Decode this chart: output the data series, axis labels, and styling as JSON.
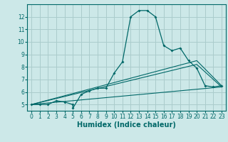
{
  "xlabel": "Humidex (Indice chaleur)",
  "bg_color": "#cce8e8",
  "grid_color": "#aacccc",
  "line_color": "#006868",
  "xlim": [
    -0.5,
    23.5
  ],
  "ylim": [
    4.5,
    13.0
  ],
  "yticks": [
    5,
    6,
    7,
    8,
    9,
    10,
    11,
    12
  ],
  "xticks": [
    0,
    1,
    2,
    3,
    4,
    5,
    6,
    7,
    8,
    9,
    10,
    11,
    12,
    13,
    14,
    15,
    16,
    17,
    18,
    19,
    20,
    21,
    22,
    23
  ],
  "line1_x": [
    0,
    1,
    2,
    3,
    4,
    5,
    5,
    6,
    7,
    8,
    9,
    10,
    11,
    12,
    13,
    14,
    15,
    16,
    17,
    18,
    19,
    20,
    21,
    22,
    23
  ],
  "line1_y": [
    5.0,
    5.0,
    5.0,
    5.3,
    5.2,
    5.0,
    4.7,
    5.8,
    6.1,
    6.3,
    6.3,
    7.5,
    8.4,
    12.0,
    12.5,
    12.5,
    12.0,
    9.7,
    9.3,
    9.5,
    8.5,
    7.9,
    6.5,
    6.4,
    6.5
  ],
  "line2_x": [
    0,
    20,
    23
  ],
  "line2_y": [
    5.0,
    8.5,
    6.5
  ],
  "line3_x": [
    0,
    20,
    23
  ],
  "line3_y": [
    5.0,
    8.2,
    6.4
  ],
  "line4_x": [
    0,
    23
  ],
  "line4_y": [
    5.0,
    6.4
  ],
  "tick_fontsize": 5.5,
  "xlabel_fontsize": 7.0
}
